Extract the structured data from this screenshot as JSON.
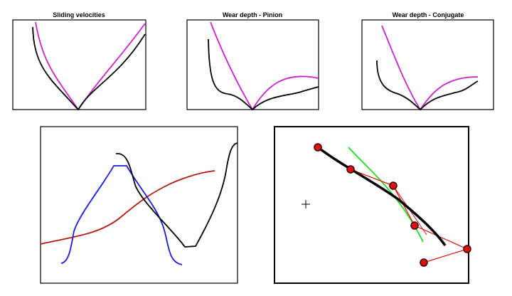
{
  "panels": [
    {
      "title": "Sliding velocities"
    },
    {
      "title": "Wear depth - Pinion"
    },
    {
      "title": "Wear depth - Conjugate"
    }
  ]
}
